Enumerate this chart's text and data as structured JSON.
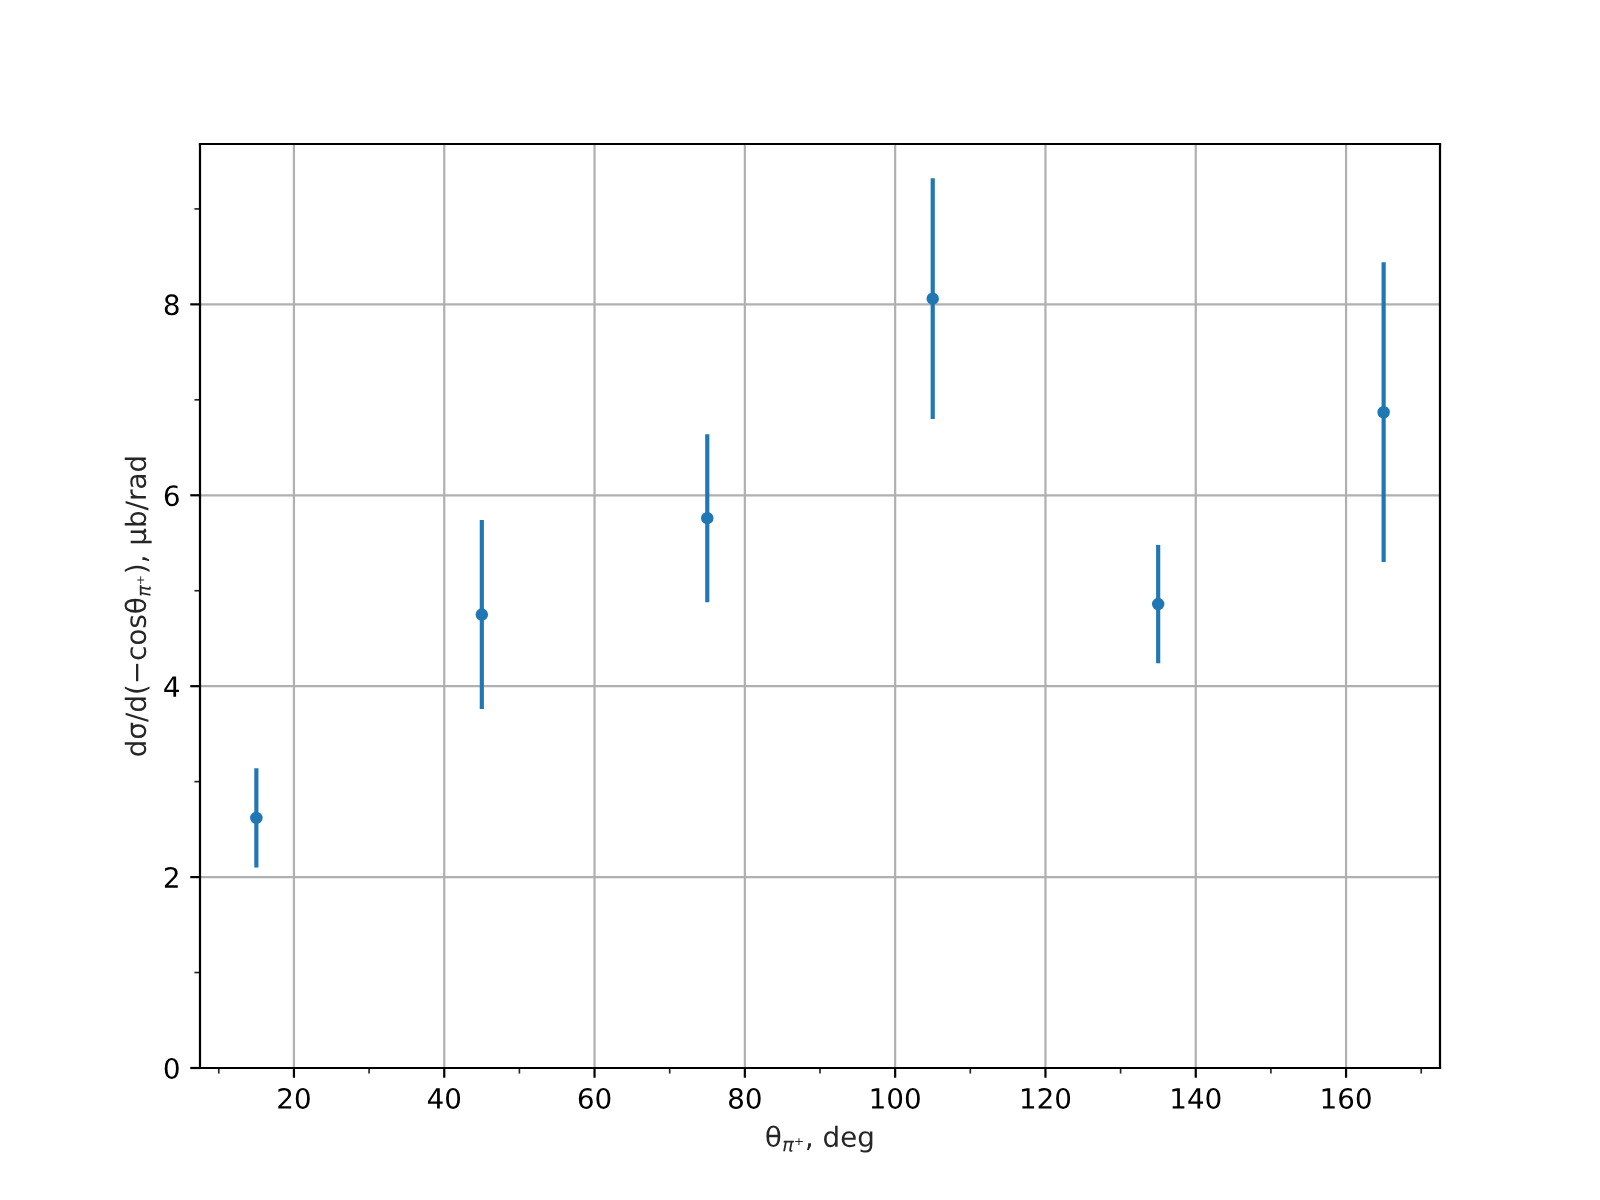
{
  "chart_data": {
    "type": "scatter",
    "xlabel": "θ$_{π⁺}$, deg",
    "ylabel": "dσ/d(−cosθ$_{π⁺}$), μb/rad",
    "x": [
      15,
      45,
      75,
      105,
      135,
      165
    ],
    "series": [
      {
        "color": "#1f77b4",
        "values": [
          2.62,
          4.75,
          5.76,
          8.06,
          4.86,
          6.87
        ],
        "errors": [
          0.52,
          0.99,
          0.88,
          1.26,
          0.62,
          1.57
        ]
      }
    ],
    "xlim": [
      7.5,
      172.5
    ],
    "ylim": [
      0,
      9.68
    ],
    "xticks": [
      20,
      40,
      60,
      80,
      100,
      120,
      140,
      160
    ],
    "yticks": [
      0,
      2,
      4,
      6,
      8
    ],
    "grid": true,
    "marker": "circle",
    "legend": false
  }
}
